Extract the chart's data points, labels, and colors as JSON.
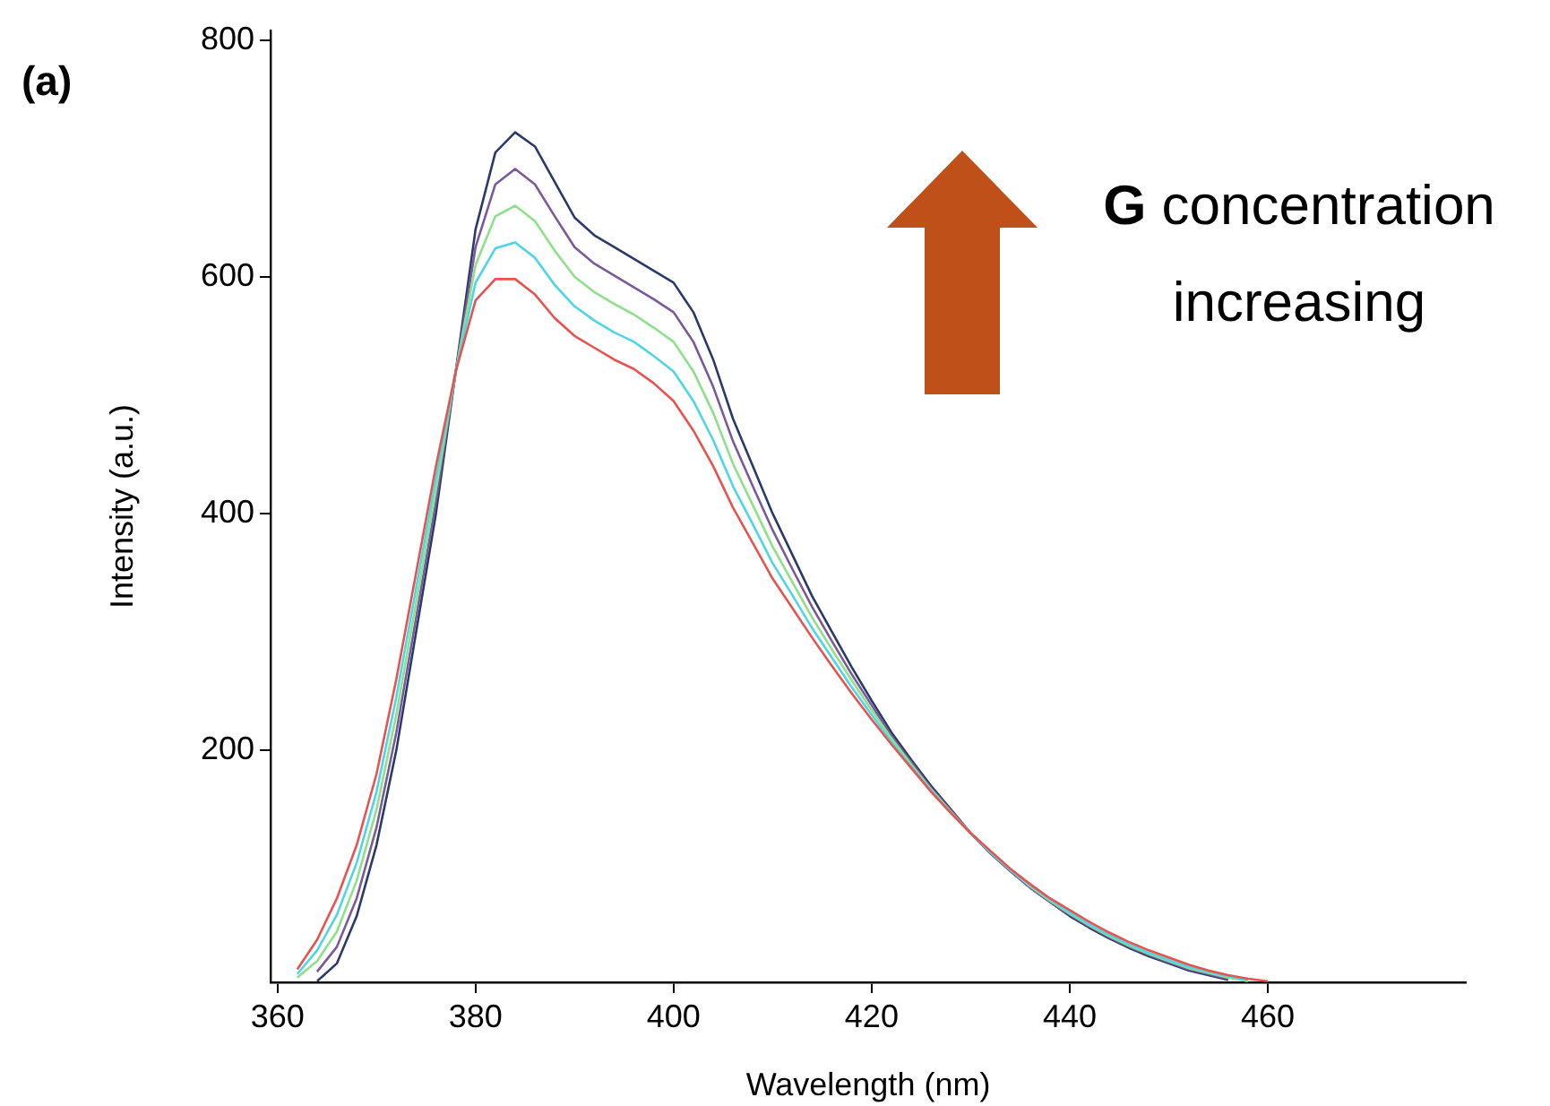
{
  "chart_data": {
    "type": "line",
    "xlabel": "Wavelength (nm)",
    "ylabel": "Intensity (a.u.)",
    "x": [
      362,
      364,
      366,
      368,
      370,
      372,
      374,
      376,
      378,
      380,
      382,
      384,
      386,
      388,
      390,
      392,
      394,
      396,
      398,
      400,
      402,
      404,
      406,
      408,
      410,
      412,
      414,
      416,
      418,
      420,
      422,
      424,
      426,
      428,
      430,
      432,
      434,
      436,
      438,
      440,
      442,
      444,
      446,
      448,
      450,
      452,
      454,
      456,
      458,
      460
    ],
    "series": [
      {
        "color": "#e8534f",
        "values": [
          15,
          40,
          75,
          120,
          180,
          260,
          350,
          440,
          520,
          580,
          598,
          598,
          585,
          565,
          550,
          540,
          530,
          522,
          510,
          495,
          470,
          440,
          405,
          375,
          345,
          320,
          295,
          271,
          248,
          226,
          205,
          185,
          165,
          147,
          130,
          115,
          100,
          87,
          75,
          65,
          55,
          46,
          38,
          31,
          25,
          19,
          14,
          10,
          7,
          5
        ]
      },
      {
        "color": "#4fd6e6",
        "values": [
          11,
          31,
          61,
          105,
          165,
          245,
          337,
          430,
          520,
          595,
          624,
          629,
          616,
          593,
          575,
          563,
          553,
          545,
          533,
          520,
          495,
          462,
          423,
          391,
          358,
          331,
          303,
          278,
          253,
          230,
          207,
          186,
          166,
          147,
          130,
          114,
          99,
          86,
          74,
          63,
          53,
          44,
          36,
          29,
          23,
          17,
          13,
          9,
          6,
          null
        ]
      },
      {
        "color": "#8ee08a",
        "values": [
          8,
          22,
          47,
          90,
          150,
          230,
          325,
          420,
          520,
          610,
          651,
          660,
          647,
          622,
          600,
          587,
          577,
          568,
          557,
          545,
          520,
          485,
          442,
          407,
          372,
          342,
          312,
          285,
          259,
          234,
          210,
          188,
          167,
          148,
          130,
          114,
          99,
          85,
          73,
          62,
          52,
          43,
          35,
          28,
          22,
          16,
          12,
          8,
          5,
          null
        ]
      },
      {
        "color": "#7a5a9a",
        "values": [
          null,
          13,
          34,
          75,
          135,
          215,
          312,
          410,
          520,
          625,
          678,
          691,
          678,
          651,
          625,
          611,
          601,
          591,
          581,
          570,
          545,
          507,
          461,
          423,
          386,
          353,
          321,
          292,
          264,
          238,
          212,
          190,
          168,
          149,
          130,
          113,
          98,
          84,
          72,
          61,
          51,
          42,
          34,
          27,
          21,
          15,
          11,
          7,
          null,
          null
        ]
      },
      {
        "color": "#2a3a6a",
        "values": [
          null,
          5,
          20,
          60,
          120,
          200,
          300,
          400,
          520,
          640,
          705,
          722,
          710,
          680,
          650,
          635,
          625,
          615,
          605,
          595,
          570,
          530,
          480,
          440,
          400,
          365,
          330,
          300,
          270,
          242,
          215,
          192,
          170,
          150,
          130,
          113,
          98,
          84,
          72,
          60,
          50,
          41,
          33,
          26,
          20,
          14,
          10,
          6,
          null,
          null
        ]
      }
    ],
    "xlim": [
      359.3,
      480
    ],
    "xticks": [
      360,
      380,
      400,
      420,
      440,
      460
    ],
    "ylim": [
      4,
      808
    ],
    "yticks": [
      200,
      400,
      600,
      800
    ],
    "grid": false,
    "legend": false,
    "marker": "none",
    "line_style": "solid",
    "annotations": [
      "(a)",
      "G concentration increasing"
    ]
  }
}
